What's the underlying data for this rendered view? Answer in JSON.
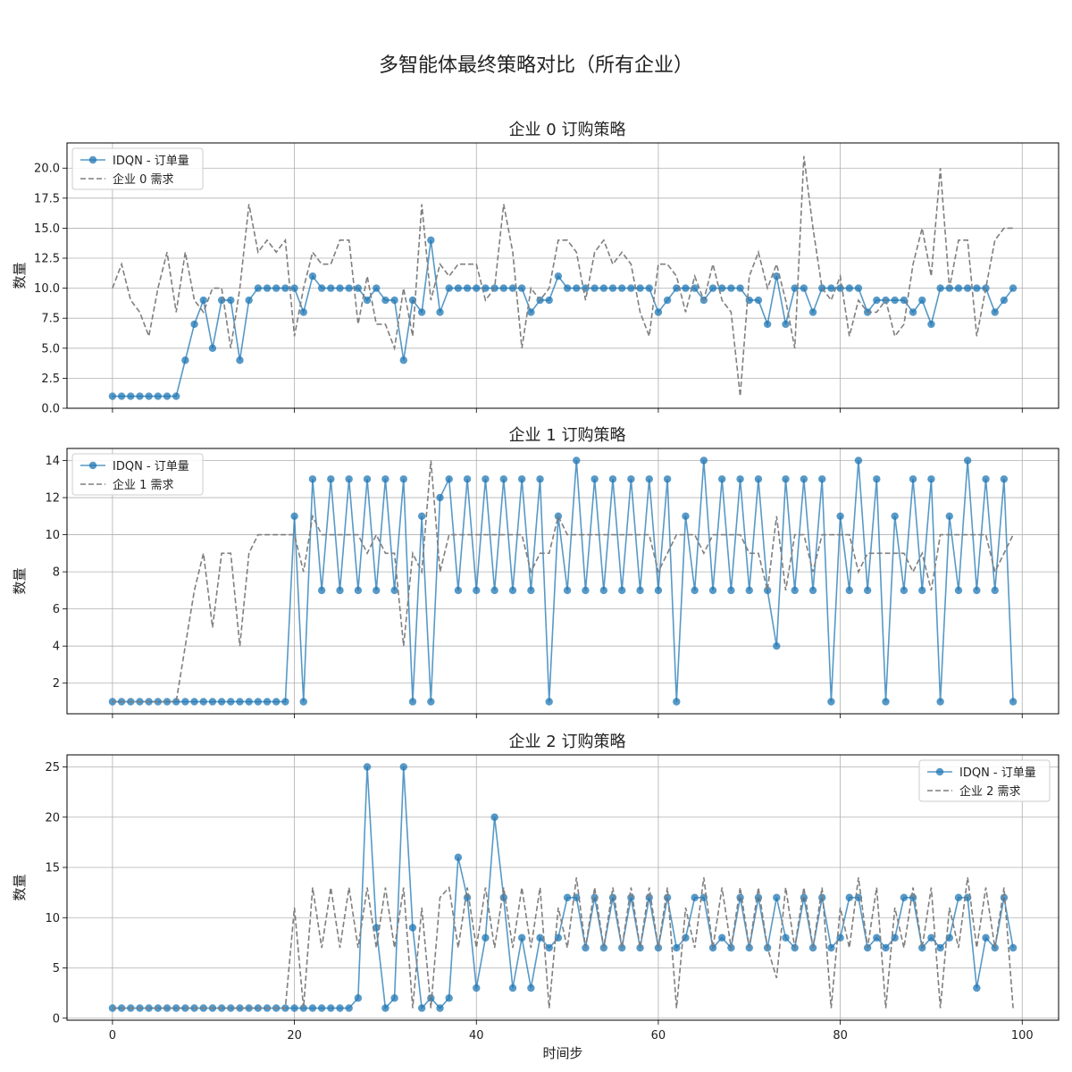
{
  "figure": {
    "title": "多智能体最终策略对比（所有企业）",
    "xlabel": "时间步",
    "ylabel": "数量"
  },
  "colors": {
    "order": "#1f77b4",
    "demand": "#7f7f7f",
    "grid": "#b0b0b0"
  },
  "chart_data": [
    {
      "type": "line",
      "title": "企业 0 订购策略",
      "ylabel": "数量",
      "xlim": [
        -5,
        104
      ],
      "ylim": [
        0,
        22.1
      ],
      "yticks": [
        0.0,
        2.5,
        5.0,
        7.5,
        10.0,
        12.5,
        15.0,
        17.5,
        20.0
      ],
      "ytick_labels": [
        "0.0",
        "2.5",
        "5.0",
        "7.5",
        "10.0",
        "12.5",
        "15.0",
        "17.5",
        "20.0"
      ],
      "xticks": [
        0,
        20,
        40,
        60,
        80,
        100
      ],
      "legend_position": "top-left",
      "series": [
        {
          "name": "IDQN - 订单量",
          "style": "line-marker",
          "values": [
            1,
            1,
            1,
            1,
            1,
            1,
            1,
            1,
            4,
            7,
            9,
            5,
            9,
            9,
            4,
            9,
            10,
            10,
            10,
            10,
            10,
            8,
            11,
            10,
            10,
            10,
            10,
            10,
            9,
            10,
            9,
            9,
            4,
            9,
            8,
            14,
            8,
            10,
            10,
            10,
            10,
            10,
            10,
            10,
            10,
            10,
            8,
            9,
            9,
            11,
            10,
            10,
            10,
            10,
            10,
            10,
            10,
            10,
            10,
            10,
            8,
            9,
            10,
            10,
            10,
            9,
            10,
            10,
            10,
            10,
            9,
            9,
            7,
            11,
            7,
            10,
            10,
            8,
            10,
            10,
            10,
            10,
            10,
            8,
            9,
            9,
            9,
            9,
            8,
            9,
            7,
            10,
            10,
            10,
            10,
            10,
            10,
            8,
            9,
            10
          ]
        },
        {
          "name": "企业 0 需求",
          "style": "dashed",
          "values": [
            10,
            12,
            9,
            8,
            6,
            10,
            13,
            8,
            13,
            9,
            8,
            10,
            10,
            5,
            10,
            17,
            13,
            14,
            13,
            14,
            6,
            10,
            13,
            12,
            12,
            14,
            14,
            7,
            11,
            7,
            7,
            5,
            10,
            6,
            17,
            9,
            12,
            11,
            12,
            12,
            12,
            9,
            10,
            17,
            13,
            5,
            10,
            9,
            10,
            14,
            14,
            13,
            9,
            13,
            14,
            12,
            13,
            12,
            8,
            6,
            12,
            12,
            11,
            8,
            11,
            9,
            12,
            9,
            8,
            1,
            11,
            13,
            10,
            12,
            9,
            5,
            21,
            15,
            10,
            9,
            11,
            6,
            9,
            8,
            8,
            9,
            6,
            7,
            12,
            15,
            11,
            20,
            10,
            14,
            14,
            6,
            10,
            14,
            15,
            15
          ]
        }
      ]
    },
    {
      "type": "line",
      "title": "企业 1 订购策略",
      "ylabel": "数量",
      "xlim": [
        -5,
        104
      ],
      "ylim": [
        0.35,
        14.65
      ],
      "yticks": [
        2,
        4,
        6,
        8,
        10,
        12,
        14
      ],
      "ytick_labels": [
        "2",
        "4",
        "6",
        "8",
        "10",
        "12",
        "14"
      ],
      "xticks": [
        0,
        20,
        40,
        60,
        80,
        100
      ],
      "legend_position": "top-left",
      "series": [
        {
          "name": "IDQN - 订单量",
          "style": "line-marker",
          "values": [
            1,
            1,
            1,
            1,
            1,
            1,
            1,
            1,
            1,
            1,
            1,
            1,
            1,
            1,
            1,
            1,
            1,
            1,
            1,
            1,
            11,
            1,
            13,
            7,
            13,
            7,
            13,
            7,
            13,
            7,
            13,
            7,
            13,
            1,
            11,
            1,
            12,
            13,
            7,
            13,
            7,
            13,
            7,
            13,
            7,
            13,
            7,
            13,
            1,
            11,
            7,
            14,
            7,
            13,
            7,
            13,
            7,
            13,
            7,
            13,
            7,
            13,
            1,
            11,
            7,
            14,
            7,
            13,
            7,
            13,
            7,
            13,
            7,
            4,
            13,
            7,
            13,
            7,
            13,
            1,
            11,
            7,
            14,
            7,
            13,
            1,
            11,
            7,
            13,
            7,
            13,
            1,
            11,
            7,
            14,
            7,
            13,
            7,
            13,
            1
          ]
        },
        {
          "name": "企业 1 需求",
          "style": "dashed",
          "values": [
            1,
            1,
            1,
            1,
            1,
            1,
            1,
            1,
            4,
            7,
            9,
            5,
            9,
            9,
            4,
            9,
            10,
            10,
            10,
            10,
            10,
            8,
            11,
            10,
            10,
            10,
            10,
            10,
            9,
            10,
            9,
            9,
            4,
            9,
            8,
            14,
            8,
            10,
            10,
            10,
            10,
            10,
            10,
            10,
            10,
            10,
            8,
            9,
            9,
            11,
            10,
            10,
            10,
            10,
            10,
            10,
            10,
            10,
            10,
            10,
            8,
            9,
            10,
            10,
            10,
            9,
            10,
            10,
            10,
            10,
            9,
            9,
            7,
            11,
            7,
            10,
            10,
            8,
            10,
            10,
            10,
            10,
            8,
            9,
            9,
            9,
            9,
            9,
            8,
            9,
            7,
            10,
            10,
            10,
            10,
            10,
            10,
            8,
            9,
            10
          ]
        }
      ]
    },
    {
      "type": "line",
      "title": "企业 2 订购策略",
      "ylabel": "数量",
      "xlim": [
        -5,
        104
      ],
      "ylim": [
        -0.2,
        26.2
      ],
      "yticks": [
        0,
        5,
        10,
        15,
        20,
        25
      ],
      "ytick_labels": [
        "0",
        "5",
        "10",
        "15",
        "20",
        "25"
      ],
      "xticks": [
        0,
        20,
        40,
        60,
        80,
        100
      ],
      "xtick_labels": [
        "0",
        "20",
        "40",
        "60",
        "80",
        "100"
      ],
      "legend_position": "top-right",
      "series": [
        {
          "name": "IDQN - 订单量",
          "style": "line-marker",
          "values": [
            1,
            1,
            1,
            1,
            1,
            1,
            1,
            1,
            1,
            1,
            1,
            1,
            1,
            1,
            1,
            1,
            1,
            1,
            1,
            1,
            1,
            1,
            1,
            1,
            1,
            1,
            1,
            2,
            25,
            9,
            1,
            2,
            25,
            9,
            1,
            2,
            1,
            2,
            16,
            12,
            3,
            8,
            20,
            12,
            3,
            8,
            3,
            8,
            7,
            8,
            12,
            12,
            7,
            12,
            7,
            12,
            7,
            12,
            7,
            12,
            7,
            12,
            7,
            8,
            12,
            12,
            7,
            8,
            7,
            12,
            7,
            12,
            7,
            12,
            8,
            7,
            12,
            7,
            12,
            7,
            8,
            12,
            12,
            7,
            8,
            7,
            8,
            12,
            12,
            7,
            8,
            7,
            8,
            12,
            12,
            3,
            8,
            7,
            12,
            7
          ]
        },
        {
          "name": "企业 2 需求",
          "style": "dashed",
          "values": [
            1,
            1,
            1,
            1,
            1,
            1,
            1,
            1,
            1,
            1,
            1,
            1,
            1,
            1,
            1,
            1,
            1,
            1,
            1,
            1,
            11,
            1,
            13,
            7,
            13,
            7,
            13,
            7,
            13,
            7,
            13,
            7,
            13,
            1,
            11,
            1,
            12,
            13,
            7,
            13,
            7,
            13,
            7,
            13,
            7,
            13,
            7,
            13,
            1,
            11,
            7,
            14,
            7,
            13,
            7,
            13,
            7,
            13,
            7,
            13,
            7,
            13,
            1,
            11,
            7,
            14,
            7,
            13,
            7,
            13,
            7,
            13,
            7,
            4,
            13,
            7,
            13,
            7,
            13,
            1,
            11,
            7,
            14,
            7,
            13,
            1,
            11,
            7,
            13,
            7,
            13,
            1,
            11,
            7,
            14,
            7,
            13,
            7,
            13,
            1
          ]
        }
      ]
    }
  ]
}
